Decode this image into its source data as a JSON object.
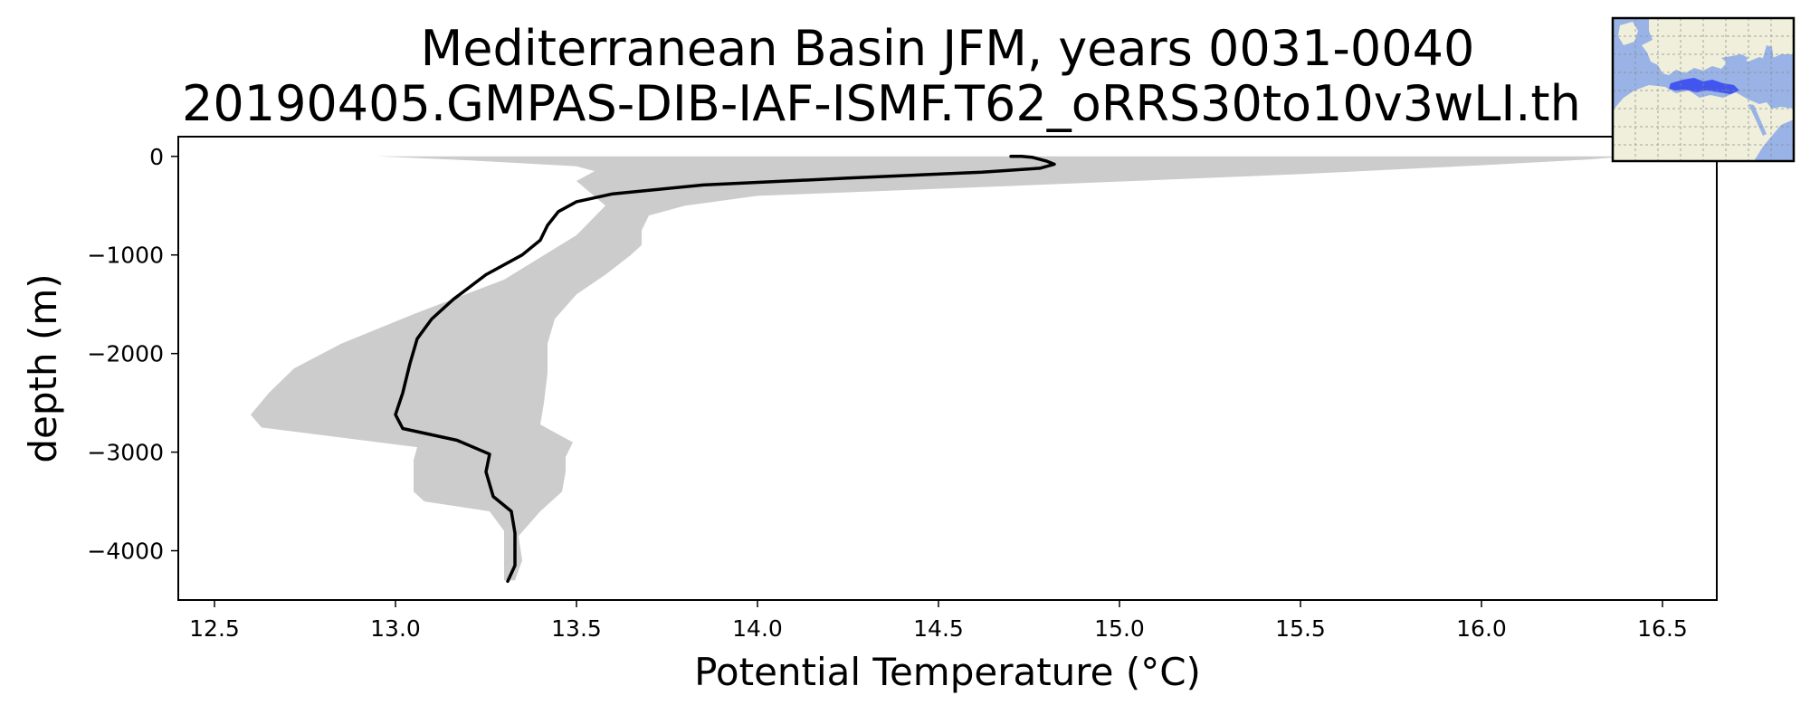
{
  "chart_data": {
    "type": "line",
    "title_lines": [
      "Mediterranean Basin JFM, years 0031-0040",
      "20190405.GMPAS-DIB-IAF-ISMF.T62_oRRS30to10v3wLI.th"
    ],
    "xlabel": "Potential Temperature (°C)",
    "ylabel": "depth (m)",
    "xlim": [
      12.4,
      16.65
    ],
    "ylim": [
      -4500,
      200
    ],
    "xticks": [
      "12.5",
      "13.0",
      "13.5",
      "14.0",
      "14.5",
      "15.0",
      "15.5",
      "16.0",
      "16.5"
    ],
    "yticks": [
      "0",
      "−1000",
      "−2000",
      "−3000",
      "−4000"
    ],
    "xtick_values": [
      12.5,
      13.0,
      13.5,
      14.0,
      14.5,
      15.0,
      15.5,
      16.0,
      16.5
    ],
    "ytick_values": [
      0,
      -1000,
      -2000,
      -3000,
      -4000
    ],
    "grid": false,
    "series": [
      {
        "style": "mean-profile",
        "color": "#000000",
        "points": [
          [
            14.7,
            0
          ],
          [
            14.73,
            0
          ],
          [
            14.76,
            -10
          ],
          [
            14.8,
            -50
          ],
          [
            14.82,
            -80
          ],
          [
            14.78,
            -120
          ],
          [
            14.62,
            -160
          ],
          [
            14.25,
            -220
          ],
          [
            13.85,
            -290
          ],
          [
            13.6,
            -380
          ],
          [
            13.5,
            -460
          ],
          [
            13.45,
            -560
          ],
          [
            13.42,
            -700
          ],
          [
            13.4,
            -850
          ],
          [
            13.35,
            -1000
          ],
          [
            13.25,
            -1200
          ],
          [
            13.16,
            -1450
          ],
          [
            13.1,
            -1650
          ],
          [
            13.06,
            -1850
          ],
          [
            13.04,
            -2100
          ],
          [
            13.02,
            -2400
          ],
          [
            13.0,
            -2620
          ],
          [
            13.02,
            -2760
          ],
          [
            13.17,
            -2880
          ],
          [
            13.26,
            -3020
          ],
          [
            13.25,
            -3200
          ],
          [
            13.27,
            -3450
          ],
          [
            13.32,
            -3600
          ],
          [
            13.33,
            -3820
          ],
          [
            13.33,
            -4000
          ],
          [
            13.33,
            -4150
          ],
          [
            13.31,
            -4310
          ]
        ]
      }
    ],
    "spread_band": {
      "color": "#cccccc",
      "upper": [
        [
          12.95,
          0
        ],
        [
          16.4,
          0
        ],
        [
          16.3,
          -30
        ],
        [
          16.0,
          -90
        ],
        [
          15.5,
          -180
        ],
        [
          14.7,
          -300
        ],
        [
          14.0,
          -400
        ],
        [
          13.8,
          -500
        ],
        [
          13.7,
          -600
        ],
        [
          13.68,
          -750
        ],
        [
          13.68,
          -900
        ],
        [
          13.65,
          -1000
        ],
        [
          13.58,
          -1200
        ],
        [
          13.5,
          -1400
        ],
        [
          13.44,
          -1650
        ],
        [
          13.42,
          -1900
        ],
        [
          13.42,
          -2200
        ],
        [
          13.41,
          -2500
        ],
        [
          13.4,
          -2720
        ],
        [
          13.49,
          -2900
        ],
        [
          13.47,
          -3050
        ],
        [
          13.47,
          -3200
        ],
        [
          13.46,
          -3400
        ],
        [
          13.4,
          -3600
        ],
        [
          13.34,
          -3850
        ],
        [
          13.35,
          -4100
        ],
        [
          13.33,
          -4300
        ]
      ],
      "lower": [
        [
          13.3,
          -4300
        ],
        [
          13.3,
          -4100
        ],
        [
          13.3,
          -3800
        ],
        [
          13.26,
          -3600
        ],
        [
          13.08,
          -3500
        ],
        [
          13.05,
          -3400
        ],
        [
          13.05,
          -3200
        ],
        [
          13.05,
          -3080
        ],
        [
          13.06,
          -2950
        ],
        [
          12.63,
          -2750
        ],
        [
          12.6,
          -2620
        ],
        [
          12.65,
          -2400
        ],
        [
          12.72,
          -2150
        ],
        [
          12.85,
          -1900
        ],
        [
          13.05,
          -1600
        ],
        [
          13.3,
          -1250
        ],
        [
          13.5,
          -800
        ],
        [
          13.58,
          -500
        ],
        [
          13.5,
          -250
        ],
        [
          13.55,
          -150
        ],
        [
          13.5,
          -100
        ],
        [
          13.2,
          -40
        ],
        [
          12.95,
          0
        ]
      ]
    }
  },
  "inset_map": {
    "ocean_color": "#99b3e6",
    "land_color": "#efefdb",
    "region_color": "#3344ee"
  }
}
